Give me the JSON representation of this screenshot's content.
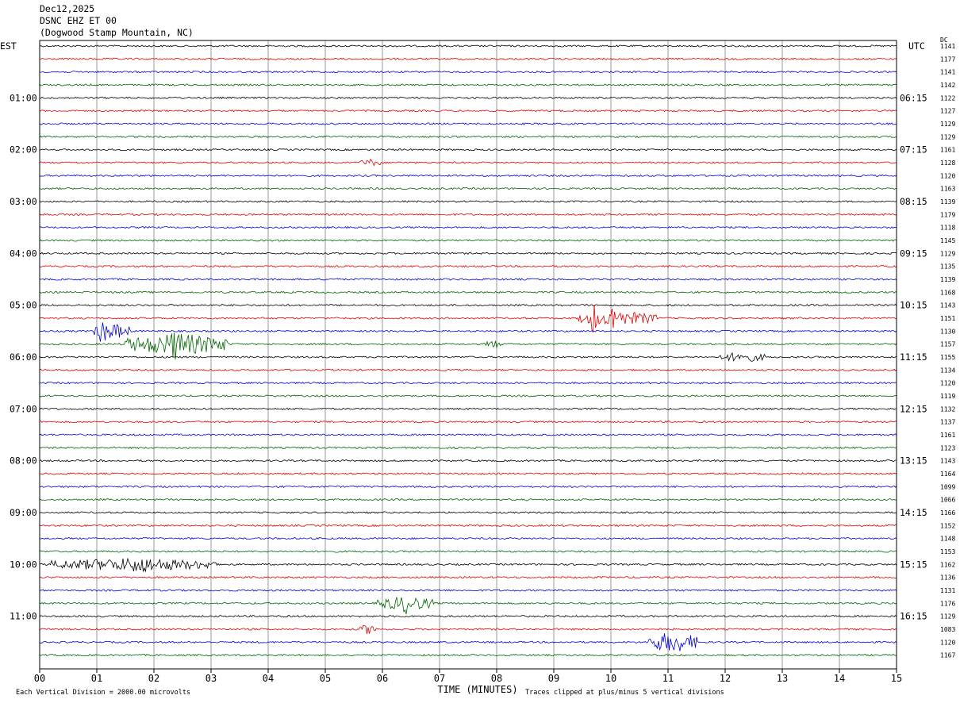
{
  "header": {
    "date": "Dec12,2025",
    "station": "DSNC EHZ ET 00",
    "location": "(Dogwood Stamp Mountain, NC)"
  },
  "chart_data": {
    "type": "line",
    "title": "DSNC EHZ ET 00",
    "left_axis_label": "EST",
    "right_axis_label": "UTC",
    "dc_label": "DC",
    "xlabel": "TIME (MINUTES)",
    "xlim": [
      0,
      15
    ],
    "x_ticks": [
      "00",
      "01",
      "02",
      "03",
      "04",
      "05",
      "06",
      "07",
      "08",
      "09",
      "10",
      "11",
      "12",
      "13",
      "14",
      "15"
    ],
    "grid": true,
    "colors": [
      "#000000",
      "#e00000",
      "#0000d8",
      "#006400"
    ],
    "est_labels": [
      "01:00",
      "02:00",
      "03:00",
      "04:00",
      "05:00",
      "06:00",
      "07:00",
      "08:00",
      "09:00",
      "10:00",
      "11:00"
    ],
    "utc_labels": [
      "06:15",
      "07:15",
      "08:15",
      "09:15",
      "10:15",
      "11:15",
      "12:15",
      "13:15",
      "14:15",
      "15:15",
      "16:15"
    ],
    "dc_values": [
      "1141",
      "1177",
      "1141",
      "1142",
      "1122",
      "1127",
      "1129",
      "1129",
      "1161",
      "1128",
      "1120",
      "1163",
      "1139",
      "1179",
      "1118",
      "1145",
      "1129",
      "1135",
      "1139",
      "1168",
      "1143",
      "1151",
      "1130",
      "1157",
      "1155",
      "1134",
      "1120",
      "1119",
      "1132",
      "1137",
      "1161",
      "1123",
      "1143",
      "1164",
      "1099",
      "1066",
      "1166",
      "1152",
      "1148",
      "1153",
      "1162",
      "1136",
      "1131",
      "1176",
      "1129",
      "1083",
      "1120",
      "1167"
    ],
    "events": [
      {
        "trace": 22,
        "start_min": 0.95,
        "end_min": 1.6,
        "amplitude": 2.2
      },
      {
        "trace": 22,
        "start_min": 1.05,
        "end_min": 1.15,
        "amplitude": 6
      },
      {
        "trace": 23,
        "start_min": 1.5,
        "end_min": 3.3,
        "amplitude": 3.2
      },
      {
        "trace": 23,
        "start_min": 2.2,
        "end_min": 2.6,
        "amplitude": 5
      },
      {
        "trace": 21,
        "start_min": 9.4,
        "end_min": 10.8,
        "amplitude": 2.0
      },
      {
        "trace": 21,
        "start_min": 9.65,
        "end_min": 9.75,
        "amplitude": 6
      },
      {
        "trace": 21,
        "start_min": 9.95,
        "end_min": 10.15,
        "amplitude": 5
      },
      {
        "trace": 24,
        "start_min": 11.9,
        "end_min": 12.7,
        "amplitude": 1.3
      },
      {
        "trace": 40,
        "start_min": 0.2,
        "end_min": 3.1,
        "amplitude": 1.8
      },
      {
        "trace": 40,
        "start_min": 1.3,
        "end_min": 2.2,
        "amplitude": 2.4
      },
      {
        "trace": 43,
        "start_min": 5.9,
        "end_min": 6.9,
        "amplitude": 2.0
      },
      {
        "trace": 43,
        "start_min": 6.3,
        "end_min": 6.6,
        "amplitude": 3.5
      },
      {
        "trace": 45,
        "start_min": 5.6,
        "end_min": 5.9,
        "amplitude": 1.3
      },
      {
        "trace": 46,
        "start_min": 10.65,
        "end_min": 11.5,
        "amplitude": 3.0
      },
      {
        "trace": 23,
        "start_min": 7.8,
        "end_min": 8.1,
        "amplitude": 1.0
      },
      {
        "trace": 9,
        "start_min": 5.6,
        "end_min": 6.0,
        "amplitude": 0.9
      }
    ]
  },
  "footer": {
    "scale_note": "Each Vertical Division = 2000.00 microvolts",
    "clip_note": "Traces clipped at plus/minus 5 vertical divisions"
  }
}
